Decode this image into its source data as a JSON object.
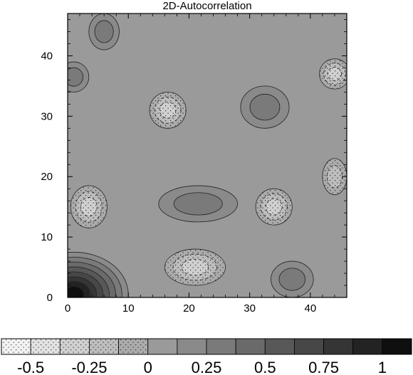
{
  "chart_data": {
    "type": "heatmap",
    "title": "2D-Autocorrelation",
    "xlabel": "",
    "ylabel": "",
    "xlim": [
      0,
      46
    ],
    "ylim": [
      0,
      47
    ],
    "x_ticks": [
      0,
      10,
      20,
      30,
      40
    ],
    "y_ticks": [
      0,
      10,
      20,
      30,
      40
    ],
    "contour_levels": [
      -0.5,
      -0.375,
      -0.25,
      -0.125,
      0,
      0.125,
      0.25,
      0.375,
      0.5,
      0.625,
      0.75,
      0.875,
      1
    ],
    "colorbar": {
      "tick_labels": [
        "-0.5",
        "-0.25",
        "0",
        "0.25",
        "0.5",
        "0.75",
        "1"
      ],
      "tick_values": [
        -0.5,
        -0.25,
        0,
        0.25,
        0.5,
        0.75,
        1
      ],
      "bins": [
        {
          "color": "#f2f2f2",
          "stipple": true
        },
        {
          "color": "#e2e2e2",
          "stipple": true
        },
        {
          "color": "#d0d0d0",
          "stipple": true
        },
        {
          "color": "#bdbdbd",
          "stipple": true
        },
        {
          "color": "#ababab",
          "stipple": true
        },
        {
          "color": "#9a9a9a",
          "stipple": false
        },
        {
          "color": "#8a8a8a",
          "stipple": false
        },
        {
          "color": "#7a7a7a",
          "stipple": false
        },
        {
          "color": "#6a6a6a",
          "stipple": false
        },
        {
          "color": "#585858",
          "stipple": false
        },
        {
          "color": "#474747",
          "stipple": false
        },
        {
          "color": "#353535",
          "stipple": false
        },
        {
          "color": "#232323",
          "stipple": false
        },
        {
          "color": "#0f0f0f",
          "stipple": false
        }
      ]
    },
    "background_value": 0.05,
    "features": [
      {
        "kind": "positive",
        "x": 1,
        "y": 0.5,
        "rx": 9,
        "ry": 7,
        "peak": 1.0
      },
      {
        "kind": "positive",
        "x": 6,
        "y": 44,
        "rx": 2.5,
        "ry": 3,
        "peak": 0.3
      },
      {
        "kind": "positive",
        "x": 1,
        "y": 36.5,
        "rx": 2.5,
        "ry": 2.5,
        "peak": 0.3
      },
      {
        "kind": "positive",
        "x": 32.5,
        "y": 31.5,
        "rx": 4,
        "ry": 3.5,
        "peak": 0.3
      },
      {
        "kind": "positive",
        "x": 21.5,
        "y": 15.5,
        "rx": 6.5,
        "ry": 3,
        "peak": 0.35
      },
      {
        "kind": "positive",
        "x": 37,
        "y": 3,
        "rx": 3.5,
        "ry": 3,
        "peak": 0.3
      },
      {
        "kind": "negative",
        "x": 16.5,
        "y": 31,
        "rx": 3,
        "ry": 3,
        "peak": -0.35
      },
      {
        "kind": "negative",
        "x": 34,
        "y": 15,
        "rx": 3,
        "ry": 3,
        "peak": -0.35
      },
      {
        "kind": "negative",
        "x": 3.5,
        "y": 15,
        "rx": 3,
        "ry": 3.5,
        "peak": -0.3
      },
      {
        "kind": "negative",
        "x": 21,
        "y": 5,
        "rx": 5,
        "ry": 3,
        "peak": -0.25
      },
      {
        "kind": "negative",
        "x": 44,
        "y": 37,
        "rx": 2.5,
        "ry": 2.5,
        "peak": -0.25
      },
      {
        "kind": "negative",
        "x": 44,
        "y": 20,
        "rx": 2,
        "ry": 3,
        "peak": -0.2
      }
    ],
    "stippled_region": "values below 0 (negative correlation)"
  }
}
